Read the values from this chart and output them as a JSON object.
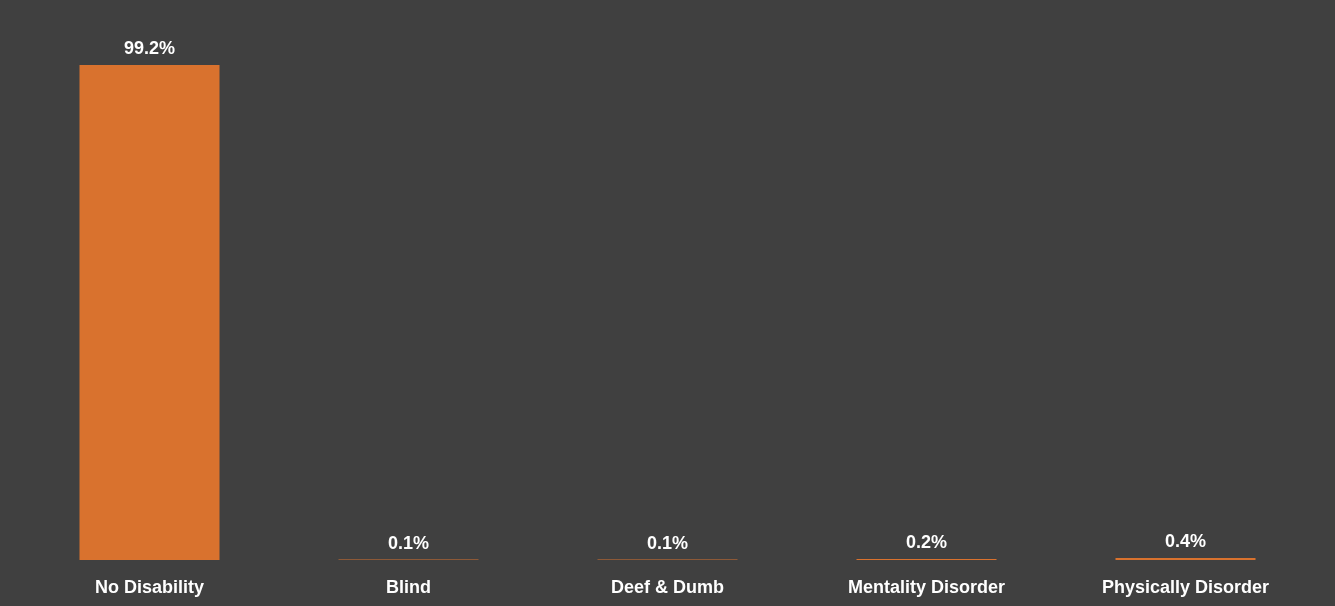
{
  "chart_data": {
    "type": "bar",
    "categories": [
      "No Disability",
      "Blind",
      "Deef & Dumb",
      "Mentality Disorder",
      "Physically Disorder"
    ],
    "values": [
      99.2,
      0.1,
      0.1,
      0.2,
      0.4
    ],
    "value_labels": [
      "99.2%",
      "0.1%",
      "0.1%",
      "0.2%",
      "0.4%"
    ],
    "color": "#d9722e",
    "grid": false
  }
}
